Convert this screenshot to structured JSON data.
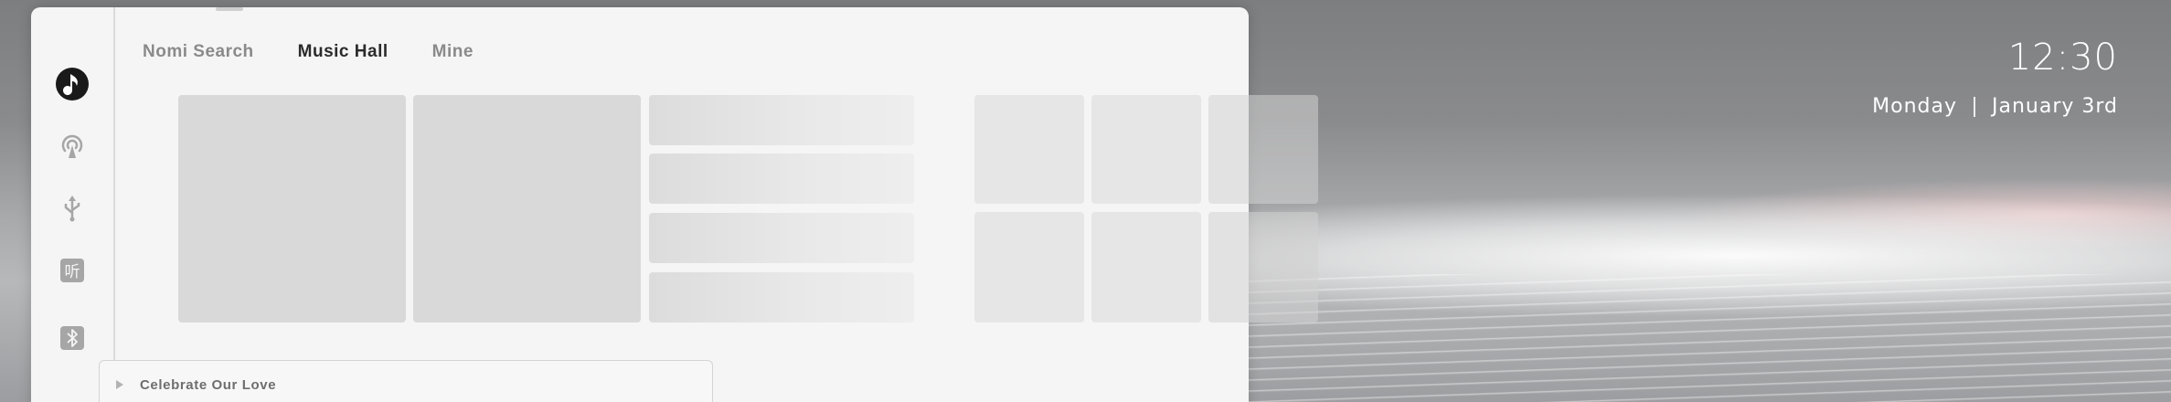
{
  "desktop": {
    "time": "12:30",
    "weekday": "Monday",
    "date": "January 3rd"
  },
  "app": {
    "sidebar": {
      "items": [
        {
          "icon": "music-note-icon"
        },
        {
          "icon": "podcast-icon"
        },
        {
          "icon": "usb-icon"
        },
        {
          "icon": "listen-icon",
          "glyph": "听"
        },
        {
          "icon": "bluetooth-icon"
        }
      ]
    },
    "tabs": [
      {
        "label": "Nomi Search"
      },
      {
        "label": "Music Hall",
        "active": true
      },
      {
        "label": "Mine"
      }
    ],
    "player": {
      "track": "Celebrate Our Love"
    }
  }
}
